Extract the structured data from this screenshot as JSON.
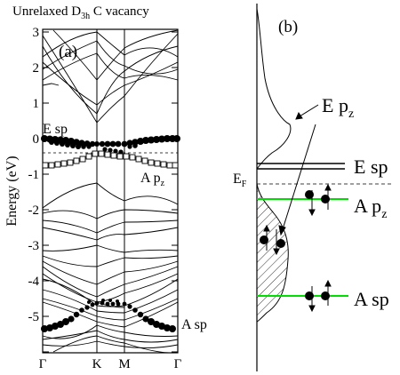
{
  "panel_a": {
    "title_pre": "Unrelaxed D",
    "title_sub": "3h",
    "title_post": " C vacancy",
    "tag": "(a)",
    "ylabel": "Energy (eV)",
    "yticks": [
      "3",
      "2",
      "1",
      "0",
      "-1",
      "-2",
      "-3",
      "-4",
      "-5"
    ],
    "xticks": [
      "Γ",
      "K",
      "M",
      "Γ"
    ],
    "label_e_sp": "E sp",
    "label_a_pz": "A p",
    "label_a_pz_sub": "z",
    "label_a_sp": "A sp"
  },
  "panel_b": {
    "tag": "(b)",
    "label_ef": "E",
    "label_ef_sub": "F",
    "label_dos_epz": "E p",
    "label_dos_epz_sub": "z",
    "label_e_sp": "E sp",
    "label_a_pz": "A p",
    "label_a_pz_sub": "z",
    "label_a_sp": "A sp"
  },
  "colors": {
    "line": "#000000",
    "level_green": "#00dd00",
    "marker_open": "#ffffff"
  }
}
